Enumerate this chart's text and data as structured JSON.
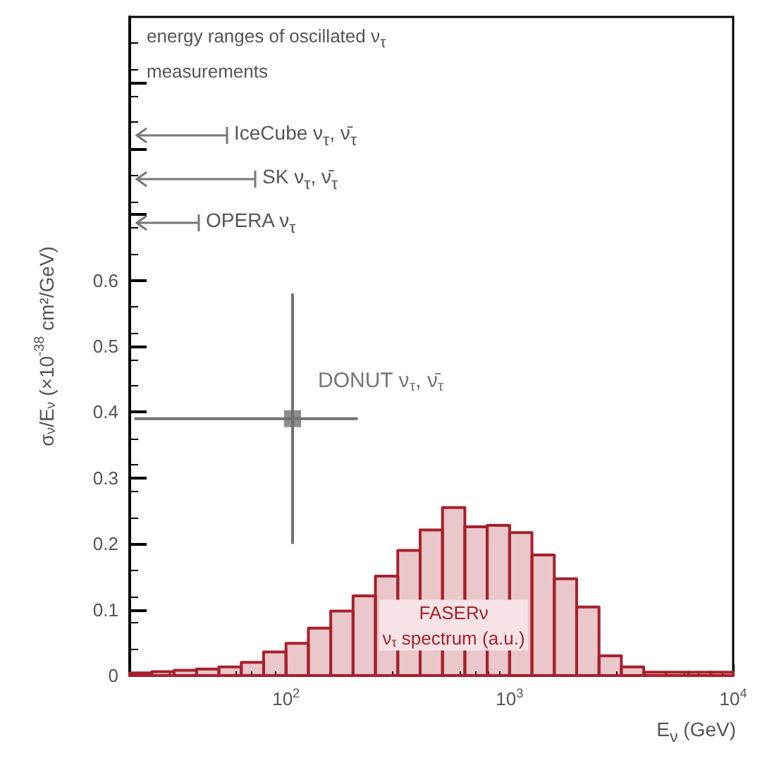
{
  "chart_data": {
    "type": "histogram",
    "xlabel": "E$_{ν}$ (GeV)",
    "ylabel": "σ$_{ν}$/E$_{ν}$ (×10$^{-38}$ cm²/GeV)",
    "log": "x",
    "marker": "square",
    "xlim": [
      20,
      10000
    ],
    "xticks": [
      {
        "value": 100,
        "label": "10$^{2}$"
      },
      {
        "value": 1000,
        "label": "10$^{3}$"
      },
      {
        "value": 10000,
        "label": "10$^{4}$"
      }
    ],
    "ylim": [
      0,
      1
    ],
    "yticks": [
      0,
      0.1,
      0.2,
      0.3,
      0.4,
      0.5,
      0.6,
      {
        "value": 0.7,
        "label": null
      },
      {
        "value": 0.8,
        "label": null
      },
      {
        "value": 0.9,
        "label": null
      }
    ],
    "annotations": [
      "energy ranges of oscillated ν$_{τ}$ measurements",
      "IceCube ν$_{τ}$, ν̄$_{τ}$",
      "SK ν$_{τ}$, ν̄$_{τ}$",
      "OPERA ν$_{τ}$"
    ],
    "series": [
      {
        "name": "FASERν\nν$_{τ}$ spectrum (a.u.)",
        "color": "#a8202c",
        "bins": [
          20,
          25.1,
          31.6,
          39.8,
          50.1,
          63.1,
          79.4,
          100,
          125.9,
          158.5,
          199.5,
          251.2,
          316.2,
          398.1,
          501.2,
          631,
          794.3,
          1000,
          1259,
          1585,
          1995,
          2512,
          3162,
          3981,
          5012,
          6310,
          7943,
          10000
        ],
        "values": [
          0.004,
          0.006,
          0.008,
          0.01,
          0.013,
          0.02,
          0.036,
          0.049,
          0.072,
          0.098,
          0.121,
          0.151,
          0.19,
          0.221,
          0.255,
          0.226,
          0.228,
          0.217,
          0.183,
          0.147,
          0.104,
          0.03,
          0.013,
          0.005,
          0.005,
          0.005,
          0.005
        ]
      },
      {
        "type": "scatter",
        "name": "DONUT ν$_{τ}$, ν̄$_{τ}$",
        "color": "#707070",
        "x": [
          107
        ],
        "values": [
          0.39
        ],
        "errors": [
          [
            0.2,
            0.58
          ]
        ],
        "xerrors": [
          [
            21,
            209
          ]
        ]
      }
    ]
  }
}
